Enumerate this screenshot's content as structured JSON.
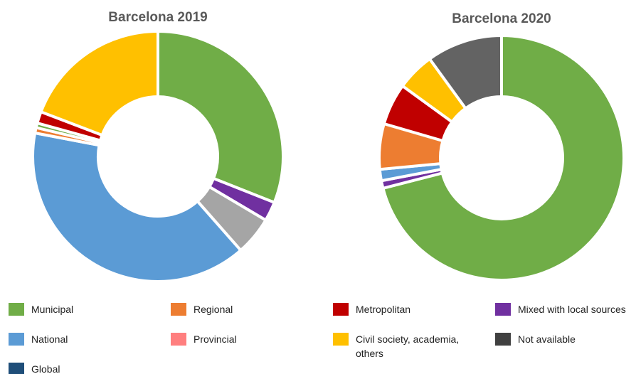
{
  "chart_data": [
    {
      "type": "donut",
      "title": "Barcelona 2019",
      "categories": [
        "Municipal",
        "Mixed with local sources",
        "Not available",
        "National",
        "Regional",
        "Municipal",
        "Metropolitan",
        "Civil society, academia, others"
      ],
      "values": [
        31,
        2.5,
        5,
        39.5,
        0.7,
        0.6,
        1.5,
        19.2
      ],
      "colors": [
        "#70ad47",
        "#7030a0",
        "#a5a5a5",
        "#5b9bd5",
        "#ed7d31",
        "#70ad47",
        "#c00000",
        "#ffc000"
      ]
    },
    {
      "type": "donut",
      "title": "Barcelona 2020",
      "categories": [
        "Municipal",
        "Mixed with local sources",
        "National",
        "Regional",
        "Metropolitan",
        "Civil society, academia, others",
        "Not available"
      ],
      "values": [
        71,
        1,
        1.5,
        6,
        5.5,
        5,
        10
      ],
      "colors": [
        "#70ad47",
        "#7030a0",
        "#5b9bd5",
        "#ed7d31",
        "#c00000",
        "#ffc000",
        "#636363"
      ]
    }
  ],
  "legend": [
    {
      "name": "Municipal",
      "color": "#70ad47"
    },
    {
      "name": "Regional",
      "color": "#ed7d31"
    },
    {
      "name": "Metropolitan",
      "color": "#c00000"
    },
    {
      "name": "Mixed with local sources",
      "color": "#7030a0"
    },
    {
      "name": "National",
      "color": "#5b9bd5"
    },
    {
      "name": "Provincial",
      "color": "#ff7f7f"
    },
    {
      "name": "Civil society, academia, others",
      "color": "#ffc000"
    },
    {
      "name": "Not available",
      "color": "#404040"
    },
    {
      "name": "Global",
      "color": "#1f4e79"
    }
  ]
}
